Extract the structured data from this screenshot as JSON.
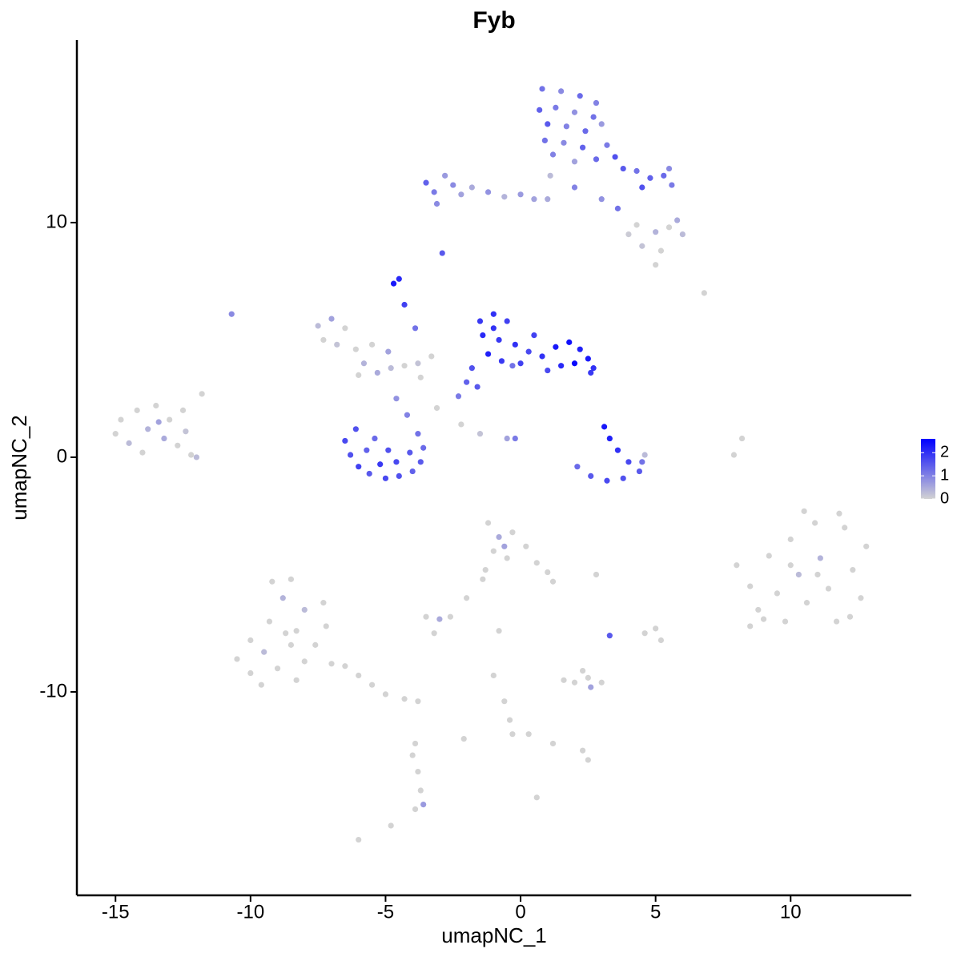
{
  "chart_data": {
    "type": "scatter",
    "title": "Fyb",
    "x_label": "umapNC_1",
    "y_label": "umapNC_2",
    "xlim": [
      -16.43,
      14.47
    ],
    "ylim": [
      -18.67,
      17.78
    ],
    "xticks": [
      -15,
      -10,
      -5,
      0,
      5,
      10
    ],
    "yticks": [
      -10,
      0,
      10
    ],
    "color_low": "#d3d3d3",
    "color_high": "#0000ff",
    "color_lim": [
      0,
      2.6
    ],
    "color_ticks": [
      0,
      1,
      2
    ],
    "x": [
      0.8,
      1.5,
      2.2,
      2.8,
      0.7,
      1.3,
      2.0,
      2.7,
      1.0,
      1.7,
      2.4,
      3.0,
      0.9,
      1.6,
      2.3,
      3.2,
      1.2,
      2.0,
      2.8,
      3.5,
      3.8,
      4.3,
      4.8,
      5.3,
      5.6,
      5.5,
      4.5,
      1.0,
      2.0,
      3.0,
      3.6,
      1.1,
      -3.5,
      -3.2,
      -2.8,
      -2.5,
      -2.2,
      -1.8,
      -1.2,
      -0.6,
      0.0,
      0.5,
      -3.1,
      4.0,
      4.5,
      5.0,
      5.5,
      6.0,
      5.2,
      4.3,
      5.8,
      5.0,
      -2.9,
      -4.7,
      -4.5,
      -4.3,
      -3.9,
      -10.7,
      6.8,
      -1.5,
      -1.0,
      -0.5,
      -1.4,
      -0.8,
      -0.2,
      0.3,
      -1.2,
      -0.7,
      0.0,
      0.8,
      1.3,
      1.8,
      2.2,
      2.5,
      2.0,
      1.5,
      2.7,
      1.0,
      -1.8,
      -2.0,
      -2.3,
      -1.6,
      -0.3,
      0.5,
      -1.0,
      2.6,
      -7.5,
      -7.0,
      -7.3,
      -6.8,
      -6.5,
      -6.1,
      -5.8,
      -5.3,
      -4.8,
      -4.3,
      -3.8,
      -5.5,
      -6.0,
      -3.3,
      -4.9,
      -3.7,
      -6.5,
      -6.3,
      -6.0,
      -5.6,
      -5.0,
      -4.5,
      -4.0,
      -3.7,
      -3.6,
      -3.8,
      -4.2,
      -4.6,
      -6.1,
      -5.7,
      -5.2,
      -4.6,
      -4.1,
      -5.4,
      -4.9,
      3.1,
      3.3,
      3.6,
      4.0,
      4.4,
      3.8,
      3.2,
      2.6,
      2.1,
      4.5,
      4.6,
      -2.2,
      -1.5,
      -0.5,
      -0.2,
      7.9,
      8.2,
      -3.1,
      -15.0,
      -14.8,
      -14.5,
      -14.2,
      -13.8,
      -13.5,
      -13.2,
      -13.0,
      -12.7,
      -12.4,
      -12.2,
      -12.5,
      -11.8,
      -14.0,
      -13.4,
      -12.0,
      8.0,
      8.5,
      8.8,
      9.2,
      9.5,
      9.8,
      10.0,
      10.3,
      10.6,
      10.9,
      11.1,
      11.4,
      11.7,
      12.0,
      12.3,
      12.6,
      12.8,
      10.5,
      9.0,
      11.8,
      10.0,
      12.2,
      8.5,
      11.0,
      -9.2,
      -8.8,
      -8.5,
      -8.0,
      -9.3,
      -8.7,
      -10.0,
      -10.5,
      -10.0,
      -9.5,
      -9.0,
      -8.5,
      -8.0,
      -7.6,
      -7.2,
      -7.0,
      -8.3,
      -9.6,
      -6.5,
      -6.0,
      -5.5,
      -5.0,
      -4.3,
      -3.8,
      -7.3,
      -8.3,
      -3.9,
      -4.0,
      -3.8,
      -3.7,
      -3.6,
      -3.9,
      -6.0,
      -4.8,
      0.6,
      -1.2,
      -0.8,
      -0.3,
      -1.0,
      -0.5,
      0.2,
      0.6,
      1.0,
      1.2,
      -1.3,
      -0.6,
      -1.4,
      -3.5,
      -3.0,
      -2.6,
      -3.2,
      -2.0,
      -0.8,
      2.8,
      3.3,
      5.0,
      5.2,
      4.6,
      2.0,
      2.5,
      2.6,
      3.0,
      2.3,
      1.6,
      -1.0,
      -0.6,
      -0.4,
      -0.3,
      0.3,
      1.2,
      2.3,
      2.5,
      -2.1
    ],
    "y": [
      15.7,
      15.6,
      15.4,
      15.1,
      14.8,
      14.9,
      14.7,
      14.5,
      14.2,
      14.1,
      13.9,
      14.2,
      13.5,
      13.4,
      13.2,
      13.3,
      12.9,
      12.6,
      12.7,
      12.8,
      12.3,
      12.2,
      11.9,
      12.0,
      11.6,
      12.3,
      11.5,
      11.0,
      11.5,
      11.0,
      10.6,
      12.0,
      11.7,
      11.3,
      12.0,
      11.6,
      11.2,
      11.5,
      11.3,
      11.1,
      11.2,
      11.0,
      10.8,
      9.5,
      9.0,
      9.6,
      9.8,
      9.5,
      8.8,
      9.9,
      10.1,
      8.2,
      8.7,
      7.4,
      7.6,
      6.5,
      5.5,
      6.1,
      7.0,
      5.8,
      6.1,
      5.8,
      5.2,
      5.0,
      4.8,
      4.5,
      4.4,
      4.1,
      4.0,
      4.3,
      4.7,
      4.9,
      4.6,
      4.2,
      4.0,
      3.9,
      3.8,
      3.7,
      3.8,
      3.2,
      2.6,
      3.0,
      3.9,
      5.2,
      5.5,
      3.6,
      5.6,
      5.9,
      5.0,
      4.8,
      5.5,
      4.6,
      4.0,
      3.6,
      3.8,
      3.9,
      4.0,
      4.8,
      3.5,
      4.3,
      4.5,
      3.4,
      0.7,
      0.1,
      -0.4,
      -0.7,
      -0.9,
      -0.8,
      -0.6,
      -0.2,
      0.4,
      1.0,
      1.8,
      2.5,
      1.2,
      0.3,
      -0.3,
      -0.2,
      0.2,
      0.8,
      0.3,
      1.3,
      0.8,
      0.3,
      -0.2,
      -0.6,
      -0.9,
      -1.0,
      -0.8,
      -0.4,
      -0.2,
      0.1,
      1.4,
      1.0,
      0.8,
      0.8,
      0.1,
      0.8,
      2.1,
      1.0,
      1.6,
      0.6,
      2.0,
      1.2,
      2.2,
      0.8,
      1.6,
      0.5,
      1.1,
      0.1,
      2.0,
      2.7,
      0.2,
      1.5,
      0.0,
      -4.6,
      -5.5,
      -6.5,
      -4.2,
      -5.8,
      -7.0,
      -3.5,
      -5.0,
      -6.2,
      -2.8,
      -4.3,
      -5.6,
      -7.0,
      -3.0,
      -4.8,
      -6.0,
      -3.8,
      -2.3,
      -6.9,
      -2.4,
      -4.6,
      -6.8,
      -7.2,
      -5.0,
      -5.3,
      -6.0,
      -5.2,
      -6.5,
      -7.0,
      -7.5,
      -7.8,
      -8.6,
      -9.2,
      -8.3,
      -9.0,
      -8.0,
      -8.7,
      -8.0,
      -7.2,
      -8.8,
      -9.5,
      -9.7,
      -8.9,
      -9.3,
      -9.7,
      -10.1,
      -10.3,
      -10.4,
      -6.2,
      -7.4,
      -12.2,
      -12.7,
      -13.4,
      -14.2,
      -14.8,
      -15.0,
      -16.3,
      -15.7,
      -14.5,
      -2.8,
      -3.4,
      -3.2,
      -4.0,
      -4.3,
      -3.8,
      -4.5,
      -4.9,
      -5.3,
      -4.8,
      -3.8,
      -5.2,
      -6.8,
      -6.9,
      -6.8,
      -7.5,
      -6.0,
      -7.4,
      -5.0,
      -7.6,
      -7.3,
      -7.8,
      -7.5,
      -9.6,
      -9.4,
      -9.8,
      -9.6,
      -9.1,
      -9.5,
      -9.3,
      -10.4,
      -11.2,
      -11.8,
      -11.8,
      -12.2,
      -12.5,
      -12.9,
      -12.0
    ],
    "values": [
      1.2,
      0.9,
      1.3,
      1.0,
      1.4,
      1.1,
      0.8,
      1.2,
      1.5,
      1.0,
      1.3,
      0.7,
      1.2,
      0.9,
      1.4,
      1.1,
      1.0,
      0.6,
      1.3,
      1.6,
      1.5,
      1.2,
      1.4,
      1.3,
      1.1,
      0.9,
      1.6,
      0.5,
      1.0,
      0.8,
      1.2,
      0.3,
      1.4,
      1.1,
      0.7,
      0.9,
      0.6,
      0.5,
      0.8,
      0.4,
      0.7,
      0.6,
      0.9,
      0.1,
      0.2,
      0.4,
      0.0,
      0.3,
      0.0,
      0.0,
      0.5,
      0.0,
      1.5,
      2.3,
      2.1,
      1.8,
      1.2,
      0.9,
      0.0,
      1.9,
      2.0,
      1.8,
      2.1,
      1.9,
      2.0,
      1.7,
      2.2,
      1.9,
      1.8,
      2.0,
      2.3,
      2.4,
      2.2,
      2.3,
      2.5,
      2.1,
      2.0,
      1.7,
      1.6,
      1.4,
      1.1,
      1.5,
      1.2,
      1.8,
      2.0,
      1.9,
      0.3,
      0.6,
      0.0,
      0.2,
      0.0,
      0.0,
      0.4,
      0.5,
      0.3,
      0.0,
      0.2,
      0.0,
      0.0,
      0.0,
      0.6,
      0.0,
      1.7,
      1.6,
      1.8,
      1.5,
      1.7,
      1.6,
      1.4,
      1.5,
      1.3,
      1.2,
      1.0,
      0.8,
      1.6,
      1.4,
      1.9,
      1.7,
      1.5,
      1.3,
      1.6,
      2.3,
      2.2,
      2.0,
      1.7,
      1.5,
      1.6,
      1.7,
      1.5,
      1.3,
      1.2,
      0.3,
      0.0,
      0.2,
      0.6,
      1.1,
      0.0,
      0.0,
      0.0,
      0.0,
      0.0,
      0.3,
      0.0,
      0.4,
      0.0,
      0.5,
      0.0,
      0.0,
      0.2,
      0.0,
      0.0,
      0.0,
      0.0,
      0.6,
      0.3,
      0.0,
      0.0,
      0.0,
      0.0,
      0.0,
      0.0,
      0.0,
      0.3,
      0.0,
      0.0,
      0.4,
      0.0,
      0.0,
      0.0,
      0.0,
      0.0,
      0.0,
      0.0,
      0.0,
      0.0,
      0.0,
      0.0,
      0.0,
      0.0,
      0.0,
      0.4,
      0.0,
      0.3,
      0.0,
      0.0,
      0.0,
      0.0,
      0.0,
      0.3,
      0.0,
      0.0,
      0.0,
      0.0,
      0.0,
      0.0,
      0.0,
      0.0,
      0.0,
      0.0,
      0.0,
      0.0,
      0.0,
      0.0,
      0.0,
      0.0,
      0.0,
      0.0,
      0.0,
      0.0,
      0.7,
      0.0,
      0.0,
      0.0,
      0.0,
      0.0,
      0.5,
      0.0,
      0.0,
      0.0,
      0.0,
      0.0,
      0.0,
      0.0,
      0.0,
      0.6,
      0.0,
      0.0,
      0.5,
      0.0,
      0.0,
      0.0,
      0.0,
      0.0,
      1.5,
      0.0,
      0.0,
      0.0,
      0.0,
      0.0,
      0.6,
      0.0,
      0.0,
      0.0,
      0.0,
      0.0,
      0.0,
      0.0,
      0.0,
      0.0,
      0.0,
      0.0,
      0.0
    ]
  }
}
